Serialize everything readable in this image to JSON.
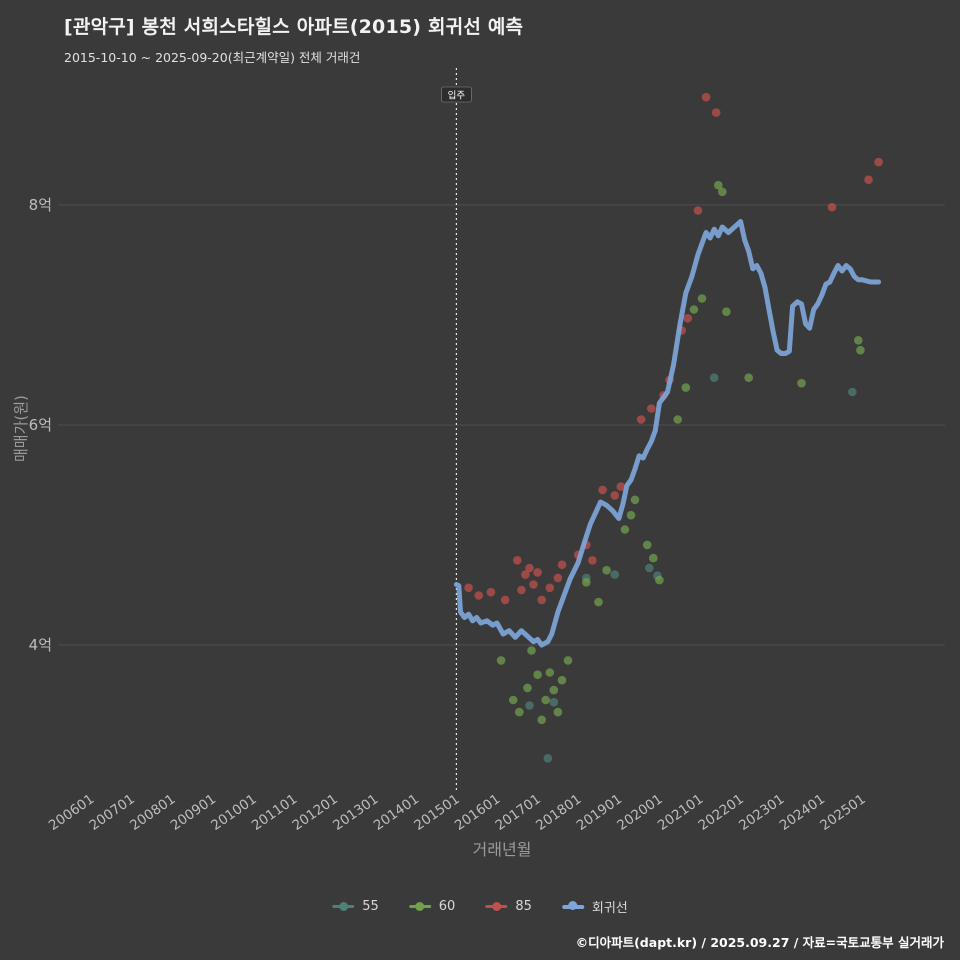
{
  "page": {
    "title": "[관악구] 봉천 서희스타힐스 아파트(2015) 회귀선 예측",
    "subtitle": "2015-10-10 ~ 2025-09-20(최근계약일) 전체 거래건",
    "footer": "©디아파트(dapt.kr) / 2025.09.27 / 자료=국토교통부 실거래가"
  },
  "colors": {
    "background": "#3a3a3a",
    "grid": "#4e4e4e",
    "tick_text": "#bdbdbd",
    "axis_title_text": "#9b9b9b",
    "title_text": "#f2f2f2",
    "subtitle_text": "#e0e0e0",
    "legend_text": "#d8d8d8",
    "footer_text": "#ffffff",
    "annotation_line": "#e8e8e8",
    "annotation_text": "#ffffff",
    "series_55": "#4e8076",
    "series_60": "#72a14e",
    "series_85": "#c0504d",
    "regression": "#7ea6d9"
  },
  "chart_data": {
    "type": "scatter",
    "title": "[관악구] 봉천 서희스타힐스 아파트(2015) 회귀선 예측",
    "subtitle": "2015-10-10 ~ 2025-09-20(최근계약일) 전체 거래건",
    "xlabel": "거래년월",
    "ylabel": "매매가(원)",
    "legend_position": "bottom",
    "grid": "horizontal-only",
    "x_range_year": [
      2005.5,
      2026.1
    ],
    "y_range_eok": [
      2.6,
      9.3
    ],
    "x_ticks": [
      "200601",
      "200701",
      "200801",
      "200901",
      "201001",
      "201101",
      "201201",
      "201301",
      "201401",
      "201501",
      "201601",
      "201701",
      "201801",
      "201901",
      "202001",
      "202101",
      "202201",
      "202301",
      "202401",
      "202501"
    ],
    "y_ticks": [
      {
        "value_eok": 4,
        "label": "4억"
      },
      {
        "value_eok": 6,
        "label": "6억"
      },
      {
        "value_eok": 8,
        "label": "8억"
      }
    ],
    "annotation": {
      "label": "입주",
      "x_year": 2015.0
    },
    "series": [
      {
        "name": "55",
        "type": "markers",
        "color": "#4e8076",
        "points_year_eok": [
          [
            2016.8,
            3.45
          ],
          [
            2017.25,
            2.97
          ],
          [
            2017.4,
            3.48
          ],
          [
            2018.2,
            4.61
          ],
          [
            2018.9,
            4.64
          ],
          [
            2019.75,
            4.7
          ],
          [
            2019.95,
            4.63
          ],
          [
            2021.35,
            6.43
          ],
          [
            2024.75,
            6.3
          ]
        ]
      },
      {
        "name": "60",
        "type": "markers",
        "color": "#72a14e",
        "points_year_eok": [
          [
            2016.1,
            3.86
          ],
          [
            2016.4,
            3.5
          ],
          [
            2016.55,
            3.39
          ],
          [
            2016.75,
            3.61
          ],
          [
            2016.85,
            3.95
          ],
          [
            2017.0,
            3.73
          ],
          [
            2017.1,
            3.32
          ],
          [
            2017.2,
            3.5
          ],
          [
            2017.3,
            3.75
          ],
          [
            2017.4,
            3.59
          ],
          [
            2017.5,
            3.39
          ],
          [
            2017.6,
            3.68
          ],
          [
            2017.75,
            3.86
          ],
          [
            2018.2,
            4.57
          ],
          [
            2018.5,
            4.39
          ],
          [
            2018.7,
            4.68
          ],
          [
            2019.15,
            5.05
          ],
          [
            2019.3,
            5.18
          ],
          [
            2019.4,
            5.32
          ],
          [
            2019.7,
            4.91
          ],
          [
            2019.85,
            4.79
          ],
          [
            2020.0,
            4.59
          ],
          [
            2020.45,
            6.05
          ],
          [
            2020.65,
            6.34
          ],
          [
            2020.85,
            7.05
          ],
          [
            2021.05,
            7.15
          ],
          [
            2021.45,
            8.18
          ],
          [
            2021.55,
            8.12
          ],
          [
            2021.65,
            7.03
          ],
          [
            2022.2,
            6.43
          ],
          [
            2023.5,
            6.38
          ],
          [
            2024.9,
            6.77
          ],
          [
            2024.95,
            6.68
          ]
        ]
      },
      {
        "name": "85",
        "type": "markers",
        "color": "#c0504d",
        "points_year_eok": [
          [
            2015.3,
            4.52
          ],
          [
            2015.55,
            4.45
          ],
          [
            2015.85,
            4.48
          ],
          [
            2016.2,
            4.41
          ],
          [
            2016.5,
            4.77
          ],
          [
            2016.6,
            4.5
          ],
          [
            2016.7,
            4.64
          ],
          [
            2016.8,
            4.7
          ],
          [
            2016.9,
            4.55
          ],
          [
            2017.0,
            4.66
          ],
          [
            2017.1,
            4.41
          ],
          [
            2017.3,
            4.52
          ],
          [
            2017.5,
            4.61
          ],
          [
            2017.6,
            4.73
          ],
          [
            2018.0,
            4.82
          ],
          [
            2018.2,
            4.91
          ],
          [
            2018.35,
            4.77
          ],
          [
            2018.6,
            5.41
          ],
          [
            2018.9,
            5.36
          ],
          [
            2019.05,
            5.44
          ],
          [
            2019.55,
            6.05
          ],
          [
            2019.8,
            6.15
          ],
          [
            2020.1,
            6.27
          ],
          [
            2020.25,
            6.41
          ],
          [
            2020.55,
            6.86
          ],
          [
            2020.7,
            6.97
          ],
          [
            2020.95,
            7.95
          ],
          [
            2021.15,
            8.98
          ],
          [
            2021.4,
            8.84
          ],
          [
            2024.25,
            7.98
          ],
          [
            2025.15,
            8.23
          ],
          [
            2025.4,
            8.39
          ]
        ]
      },
      {
        "name": "회귀선",
        "type": "line",
        "color": "#7ea6d9",
        "points_year_eok": [
          [
            2015.0,
            4.55
          ],
          [
            2015.06,
            4.54
          ],
          [
            2015.1,
            4.3
          ],
          [
            2015.2,
            4.25
          ],
          [
            2015.3,
            4.28
          ],
          [
            2015.4,
            4.22
          ],
          [
            2015.5,
            4.25
          ],
          [
            2015.6,
            4.2
          ],
          [
            2015.75,
            4.22
          ],
          [
            2015.9,
            4.18
          ],
          [
            2016.0,
            4.2
          ],
          [
            2016.15,
            4.1
          ],
          [
            2016.3,
            4.13
          ],
          [
            2016.45,
            4.07
          ],
          [
            2016.6,
            4.13
          ],
          [
            2016.75,
            4.08
          ],
          [
            2016.9,
            4.03
          ],
          [
            2017.0,
            4.05
          ],
          [
            2017.1,
            4.0
          ],
          [
            2017.25,
            4.03
          ],
          [
            2017.35,
            4.1
          ],
          [
            2017.5,
            4.3
          ],
          [
            2017.65,
            4.45
          ],
          [
            2017.8,
            4.6
          ],
          [
            2018.0,
            4.75
          ],
          [
            2018.15,
            4.93
          ],
          [
            2018.3,
            5.1
          ],
          [
            2018.45,
            5.22
          ],
          [
            2018.55,
            5.3
          ],
          [
            2018.7,
            5.27
          ],
          [
            2018.85,
            5.22
          ],
          [
            2019.0,
            5.15
          ],
          [
            2019.1,
            5.28
          ],
          [
            2019.2,
            5.45
          ],
          [
            2019.3,
            5.5
          ],
          [
            2019.4,
            5.6
          ],
          [
            2019.5,
            5.72
          ],
          [
            2019.6,
            5.7
          ],
          [
            2019.7,
            5.78
          ],
          [
            2019.8,
            5.85
          ],
          [
            2019.9,
            5.95
          ],
          [
            2020.0,
            6.2
          ],
          [
            2020.1,
            6.25
          ],
          [
            2020.2,
            6.3
          ],
          [
            2020.35,
            6.55
          ],
          [
            2020.5,
            6.9
          ],
          [
            2020.65,
            7.2
          ],
          [
            2020.8,
            7.35
          ],
          [
            2020.95,
            7.55
          ],
          [
            2021.05,
            7.65
          ],
          [
            2021.15,
            7.75
          ],
          [
            2021.25,
            7.7
          ],
          [
            2021.35,
            7.78
          ],
          [
            2021.45,
            7.72
          ],
          [
            2021.55,
            7.8
          ],
          [
            2021.7,
            7.75
          ],
          [
            2021.85,
            7.8
          ],
          [
            2022.0,
            7.85
          ],
          [
            2022.1,
            7.68
          ],
          [
            2022.2,
            7.58
          ],
          [
            2022.3,
            7.42
          ],
          [
            2022.4,
            7.45
          ],
          [
            2022.5,
            7.38
          ],
          [
            2022.6,
            7.25
          ],
          [
            2022.7,
            7.05
          ],
          [
            2022.8,
            6.85
          ],
          [
            2022.9,
            6.68
          ],
          [
            2023.0,
            6.65
          ],
          [
            2023.1,
            6.65
          ],
          [
            2023.2,
            6.67
          ],
          [
            2023.28,
            7.08
          ],
          [
            2023.4,
            7.12
          ],
          [
            2023.5,
            7.1
          ],
          [
            2023.6,
            6.92
          ],
          [
            2023.7,
            6.88
          ],
          [
            2023.8,
            7.05
          ],
          [
            2023.9,
            7.1
          ],
          [
            2024.0,
            7.18
          ],
          [
            2024.1,
            7.28
          ],
          [
            2024.2,
            7.3
          ],
          [
            2024.3,
            7.38
          ],
          [
            2024.4,
            7.45
          ],
          [
            2024.5,
            7.4
          ],
          [
            2024.6,
            7.45
          ],
          [
            2024.7,
            7.42
          ],
          [
            2024.8,
            7.35
          ],
          [
            2024.9,
            7.32
          ],
          [
            2025.0,
            7.32
          ],
          [
            2025.2,
            7.3
          ],
          [
            2025.4,
            7.3
          ]
        ]
      }
    ]
  }
}
